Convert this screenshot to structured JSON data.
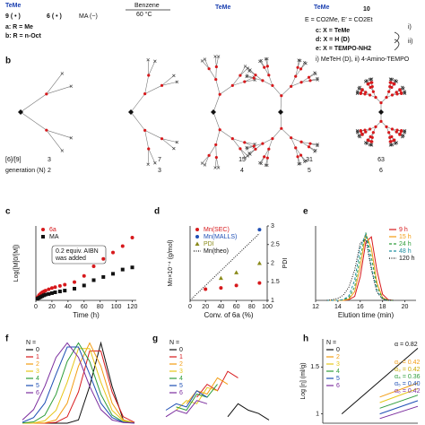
{
  "scheme": {
    "tem1": "TeMe",
    "m9": "9 ( • )",
    "m6": "6 ( • )",
    "ma": "MA (~)",
    "ra": "a: R = Me",
    "rb": "b: R = n-Oct",
    "solvent": "Benzene",
    "temp": "60 °C",
    "tem2": "TeMe",
    "tem3": "TeMe",
    "p10": "10",
    "ee": "E = CO2Me, E′ = CO2Et",
    "xc": "c: X = TeMe",
    "xd": "d: X = H (D)",
    "xe": "e: X = TEMPO-NH2",
    "s1": "i)",
    "s2": "ii)",
    "cond": "i) MeTeH (D), ii) 4-Amino-TEMPO"
  },
  "dendrimers": {
    "label": "b",
    "ratio_label": "[6]/[9]",
    "generation_label": "generation (N)",
    "ratios": [
      3,
      7,
      15,
      31,
      63
    ],
    "generations": [
      2,
      3,
      4,
      5,
      6
    ]
  },
  "chart_data": [
    {
      "type": "scatter",
      "label": "c",
      "xlabel": "Time (h)",
      "ylabel": "Log([M]0/[M])",
      "xlim": [
        0,
        125
      ],
      "xticks": [
        0,
        20,
        40,
        60,
        80,
        100,
        120
      ],
      "ylim": [
        0,
        3.5
      ],
      "legend": "upper left",
      "axes": true,
      "x": [
        2,
        4,
        6,
        8,
        10,
        12,
        16,
        20,
        24,
        30,
        36,
        48,
        60,
        72,
        84,
        96,
        108,
        120
      ],
      "series": [
        {
          "name": "6a",
          "color": "#d7191c",
          "marker": "circle",
          "values": [
            0.15,
            0.25,
            0.32,
            0.38,
            0.42,
            0.46,
            0.52,
            0.58,
            0.62,
            0.68,
            0.74,
            0.86,
            1.15,
            1.6,
            1.95,
            2.25,
            2.55,
            2.95
          ]
        },
        {
          "name": "MA",
          "color": "#111111",
          "marker": "square",
          "values": [
            0.08,
            0.12,
            0.16,
            0.2,
            0.24,
            0.27,
            0.3,
            0.34,
            0.38,
            0.42,
            0.46,
            0.55,
            0.7,
            0.95,
            1.1,
            1.25,
            1.45,
            1.55
          ]
        }
      ],
      "annotations": [
        "0.2 equiv. AIBN",
        "was added"
      ]
    },
    {
      "type": "scatter",
      "label": "d",
      "xlabel": "Conv. of 6a (%)",
      "ylabel": "Mn×10⁻⁴ (g/mol)",
      "y2label": "PDI",
      "xlim": [
        0,
        100
      ],
      "xticks": [
        0,
        20,
        40,
        60,
        80,
        100
      ],
      "ylim": [
        0,
        6
      ],
      "y2lim": [
        1,
        3
      ],
      "y2ticks": [
        1,
        1.5,
        2,
        2.5,
        3
      ],
      "legend": "upper left",
      "axes": true,
      "x": [
        0,
        20,
        40,
        60,
        90
      ],
      "series": [
        {
          "name": "Mn(SEC)",
          "color": "#d7191c",
          "marker": "circle",
          "values": [
            null,
            0.9,
            1.0,
            1.2,
            1.4
          ]
        },
        {
          "name": "Mn(MALLS)",
          "color": "#1f4fb5",
          "marker": "circle",
          "values": [
            null,
            null,
            null,
            null,
            5.7
          ]
        },
        {
          "name": "PDI",
          "color": "#8a8a1a",
          "marker": "triangle",
          "axis": "y2",
          "values": [
            null,
            null,
            1.6,
            1.75,
            2.0
          ]
        },
        {
          "name": "Mn(theo)",
          "color": "#111111",
          "line": "dotted",
          "values": [
            0,
            1.2,
            2.4,
            3.6,
            5.4
          ]
        }
      ]
    },
    {
      "type": "line",
      "label": "e",
      "xlabel": "Elution time (min)",
      "xlim": [
        12,
        21
      ],
      "xticks": [
        12,
        14,
        16,
        18,
        20
      ],
      "ylim": [
        0,
        1.1
      ],
      "legend": "upper right",
      "axes": true,
      "x": [
        13,
        13.5,
        14,
        14.5,
        15,
        15.5,
        16,
        16.5,
        17,
        17.5,
        18,
        18.5,
        19
      ],
      "series": [
        {
          "name": "9 h",
          "color": "#d7191c",
          "line": "solid",
          "values": [
            0,
            0,
            0,
            0,
            0.01,
            0.06,
            0.35,
            0.86,
            0.94,
            0.44,
            0.09,
            0.01,
            0
          ]
        },
        {
          "name": "15 h",
          "color": "#f39c12",
          "line": "solid",
          "values": [
            0,
            0,
            0,
            0,
            0.02,
            0.13,
            0.5,
            0.98,
            0.77,
            0.26,
            0.04,
            0,
            0
          ]
        },
        {
          "name": "24 h",
          "color": "#2e9d3a",
          "line": "dashed",
          "values": [
            0,
            0,
            0,
            0.01,
            0.04,
            0.2,
            0.64,
            1,
            0.64,
            0.2,
            0.03,
            0,
            0
          ]
        },
        {
          "name": "48 h",
          "color": "#1f8fa0",
          "line": "dashed",
          "values": [
            0,
            0,
            0,
            0.01,
            0.07,
            0.3,
            0.78,
            0.98,
            0.5,
            0.13,
            0.02,
            0,
            0
          ]
        },
        {
          "name": "120 h",
          "color": "#111111",
          "line": "dotted",
          "values": [
            0,
            0.01,
            0.03,
            0.08,
            0.2,
            0.45,
            0.85,
            0.9,
            0.45,
            0.12,
            0.02,
            0,
            0
          ]
        }
      ]
    },
    {
      "type": "line",
      "label": "f",
      "legend_title": "N =",
      "legend": "upper left",
      "axes": false,
      "xlim": [
        0,
        10
      ],
      "ylim": [
        0,
        1.05
      ],
      "x": [
        0,
        1,
        2,
        3,
        4,
        5,
        6,
        7,
        8,
        9,
        10
      ],
      "series": [
        {
          "name": "0",
          "color": "#111111",
          "line": "solid",
          "values": [
            0,
            0,
            0,
            0,
            0,
            0.04,
            0.46,
            1,
            0.46,
            0.04,
            0
          ]
        },
        {
          "name": "1",
          "color": "#d7191c",
          "line": "solid",
          "values": [
            0,
            0,
            0,
            0.01,
            0.08,
            0.39,
            0.9,
            0.9,
            0.39,
            0.08,
            0.01
          ]
        },
        {
          "name": "2",
          "color": "#f39c12",
          "line": "solid",
          "values": [
            0,
            0,
            0.004,
            0.04,
            0.25,
            0.71,
            1,
            0.71,
            0.25,
            0.04,
            0.004
          ]
        },
        {
          "name": "3",
          "color": "#e6c619",
          "line": "solid",
          "values": [
            0,
            0.003,
            0.03,
            0.16,
            0.51,
            0.93,
            0.93,
            0.51,
            0.16,
            0.03,
            0.003
          ]
        },
        {
          "name": "4",
          "color": "#2e9d3a",
          "line": "solid",
          "values": [
            0.002,
            0.017,
            0.1,
            0.36,
            0.77,
            1,
            0.77,
            0.36,
            0.1,
            0.017,
            0.002
          ]
        },
        {
          "name": "5",
          "color": "#1f4fb5",
          "line": "solid",
          "values": [
            0.011,
            0.07,
            0.25,
            0.61,
            0.95,
            0.95,
            0.61,
            0.25,
            0.07,
            0.011,
            0.001
          ]
        },
        {
          "name": "6",
          "color": "#7b2d9e",
          "line": "solid",
          "values": [
            0.04,
            0.17,
            0.46,
            0.82,
            1,
            0.82,
            0.46,
            0.17,
            0.04,
            0.008,
            0.001
          ]
        }
      ]
    },
    {
      "type": "line",
      "label": "g",
      "legend_title": "N =",
      "legend": "upper left",
      "axes": false,
      "xlim": [
        0,
        10
      ],
      "ylim": [
        0,
        1.3
      ],
      "x": [
        0,
        1,
        2,
        3,
        4,
        5,
        6,
        7,
        8,
        9,
        10
      ],
      "series": [
        {
          "name": "0",
          "color": "#111111",
          "line": "solid",
          "values": [
            null,
            null,
            null,
            null,
            null,
            null,
            0.1,
            0.3,
            0.2,
            0.15,
            0.05
          ]
        },
        {
          "name": "1",
          "color": "#d7191c",
          "line": "solid",
          "values": [
            null,
            null,
            null,
            0.4,
            0.6,
            0.5,
            0.8,
            0.7,
            null,
            null,
            null
          ]
        },
        {
          "name": "2",
          "color": "#f39c12",
          "line": "solid",
          "values": [
            null,
            null,
            0.3,
            0.5,
            0.45,
            0.7,
            0.6,
            null,
            null,
            null,
            null
          ]
        },
        {
          "name": "3",
          "color": "#e6c619",
          "line": "solid",
          "values": [
            null,
            0.2,
            0.35,
            0.3,
            0.55,
            0.5,
            null,
            null,
            null,
            null,
            null
          ]
        },
        {
          "name": "4",
          "color": "#2e9d3a",
          "line": "solid",
          "values": [
            null,
            0.25,
            0.2,
            0.45,
            0.4,
            0.6,
            null,
            null,
            null,
            null,
            null
          ]
        },
        {
          "name": "5",
          "color": "#1f4fb5",
          "line": "solid",
          "values": [
            0.2,
            0.3,
            0.25,
            0.5,
            0.4,
            null,
            null,
            null,
            null,
            null,
            null
          ]
        },
        {
          "name": "6",
          "color": "#7b2d9e",
          "line": "solid",
          "values": [
            0.1,
            0.2,
            0.15,
            0.35,
            0.3,
            null,
            null,
            null,
            null,
            null,
            null
          ]
        }
      ]
    },
    {
      "type": "line",
      "label": "h",
      "ylabel": "Log [η] (ml/g)",
      "legend_title": "N =",
      "legend": "upper left",
      "axes": true,
      "xlim": [
        0,
        10
      ],
      "ylim": [
        0.9,
        1.8
      ],
      "yticks": [
        1,
        1.5
      ],
      "x": [
        2,
        6,
        10
      ],
      "series": [
        {
          "name": "0",
          "color": "#111111",
          "line": "solid",
          "values": [
            1.0,
            1.35,
            1.7
          ]
        },
        {
          "name": "2",
          "color": "#f39c12",
          "line": "solid",
          "values": [
            null,
            1.18,
            1.33
          ]
        },
        {
          "name": "3",
          "color": "#e6c619",
          "line": "solid",
          "values": [
            null,
            1.12,
            1.27
          ]
        },
        {
          "name": "4",
          "color": "#2e9d3a",
          "line": "solid",
          "values": [
            null,
            1.06,
            1.2
          ]
        },
        {
          "name": "5",
          "color": "#1f4fb5",
          "line": "solid",
          "values": [
            null,
            1.0,
            1.14
          ]
        },
        {
          "name": "6",
          "color": "#7b2d9e",
          "line": "solid",
          "values": [
            null,
            0.95,
            1.08
          ]
        }
      ],
      "annotations": [
        {
          "text": "α = 0.82",
          "color": "#111111"
        },
        {
          "text": "α₂ = 0.42",
          "color": "#f39c12"
        },
        {
          "text": "α₃ = 0.42",
          "color": "#c9a800"
        },
        {
          "text": "α₄ = 0.36",
          "color": "#2e9d3a"
        },
        {
          "text": "α₅ = 0.40",
          "color": "#1f4fb5"
        },
        {
          "text": "α₆ = 0.42",
          "color": "#7b2d9e"
        }
      ]
    }
  ]
}
